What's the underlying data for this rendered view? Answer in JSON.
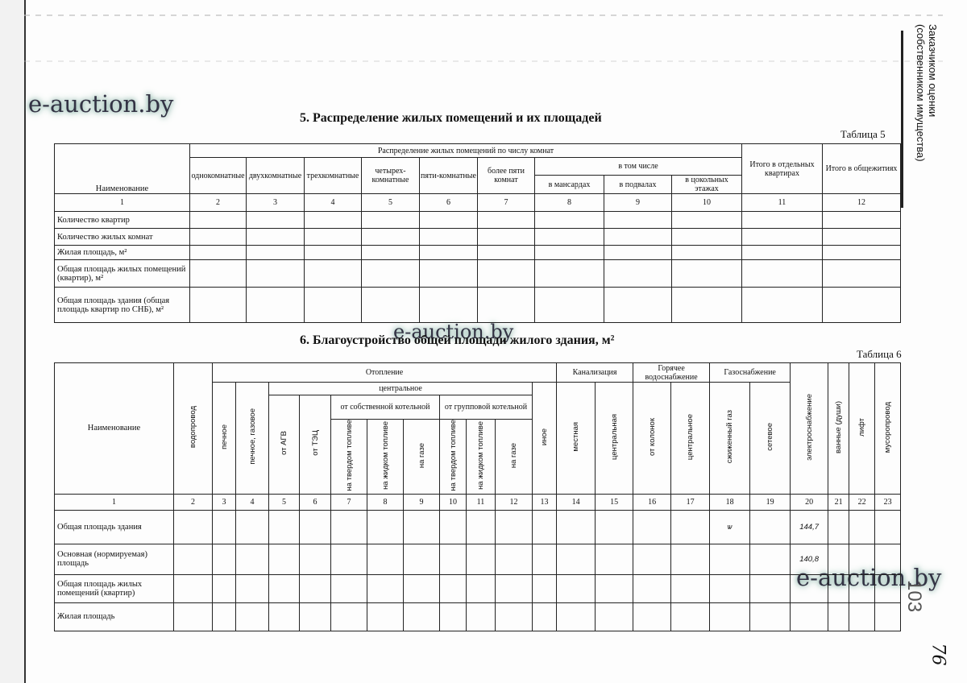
{
  "watermark": "e-auction.by",
  "side_note": "Заказчиком оценки\n(собственником имущества)",
  "page_numbers": {
    "stamp": "103",
    "handwritten": "76"
  },
  "table5": {
    "title": "5. Распределение жилых помещений и их площадей",
    "label": "Таблица 5",
    "group": "Распределение жилых помещений по числу комнат",
    "subgroup": "в том числе",
    "name_header": "Наименование",
    "cols": [
      "однокомнатные",
      "двухкомнатные",
      "трехкомнатные",
      "четырех-комнатные",
      "пяти-комнатные",
      "более пяти комнат",
      "в мансардах",
      "в подвалах",
      "в цокольных этажах",
      "Итого в отдельных квартирах",
      "Итого в общежитиях"
    ],
    "numbers": [
      "1",
      "2",
      "3",
      "4",
      "5",
      "6",
      "7",
      "8",
      "9",
      "10",
      "11",
      "12"
    ],
    "rows": [
      "Количество квартир",
      "Количество жилых комнат",
      "Жилая площадь, м²",
      "Общая площадь жилых помещений (квартир), м²",
      "Общая площадь здания (общая площадь квартир по СНБ), м²"
    ]
  },
  "table6": {
    "title": "6. Благоустройство общей площади жилого здания, м²",
    "label": "Таблица 6",
    "name_header": "Наименование",
    "groups": {
      "heating": "Отопление",
      "central": "центральное",
      "own_boiler": "от собственной котельной",
      "group_boiler": "от групповой котельной",
      "sewer": "Канализация",
      "hot_water": "Горячее водоснабжение",
      "gas": "Газоснабжение"
    },
    "cols": [
      "водопровод",
      "печное",
      "печное, газовое",
      "от АГВ",
      "от ТЭЦ",
      "на твердом топливе",
      "на жидком топливе",
      "на газе",
      "на твердом топливе",
      "на жидком топливе",
      "на газе",
      "иное",
      "местная",
      "центральная",
      "от колонок",
      "центральное",
      "сжиженный газ",
      "сетевое",
      "электроснабжение",
      "ванные (души)",
      "лифт",
      "мусоропровод"
    ],
    "numbers": [
      "1",
      "2",
      "3",
      "4",
      "5",
      "6",
      "7",
      "8",
      "9",
      "10",
      "11",
      "12",
      "13",
      "14",
      "15",
      "16",
      "17",
      "18",
      "19",
      "20",
      "21",
      "22",
      "23"
    ],
    "rows": [
      {
        "name": "Общая площадь здания",
        "gas_liquefied": "ѡ",
        "electricity": "144,7"
      },
      {
        "name": "Основная (нормируемая) площадь",
        "electricity": "140,8"
      },
      {
        "name": "Общая площадь жилых помещений (квартир)"
      },
      {
        "name": "Жилая площадь"
      }
    ]
  }
}
